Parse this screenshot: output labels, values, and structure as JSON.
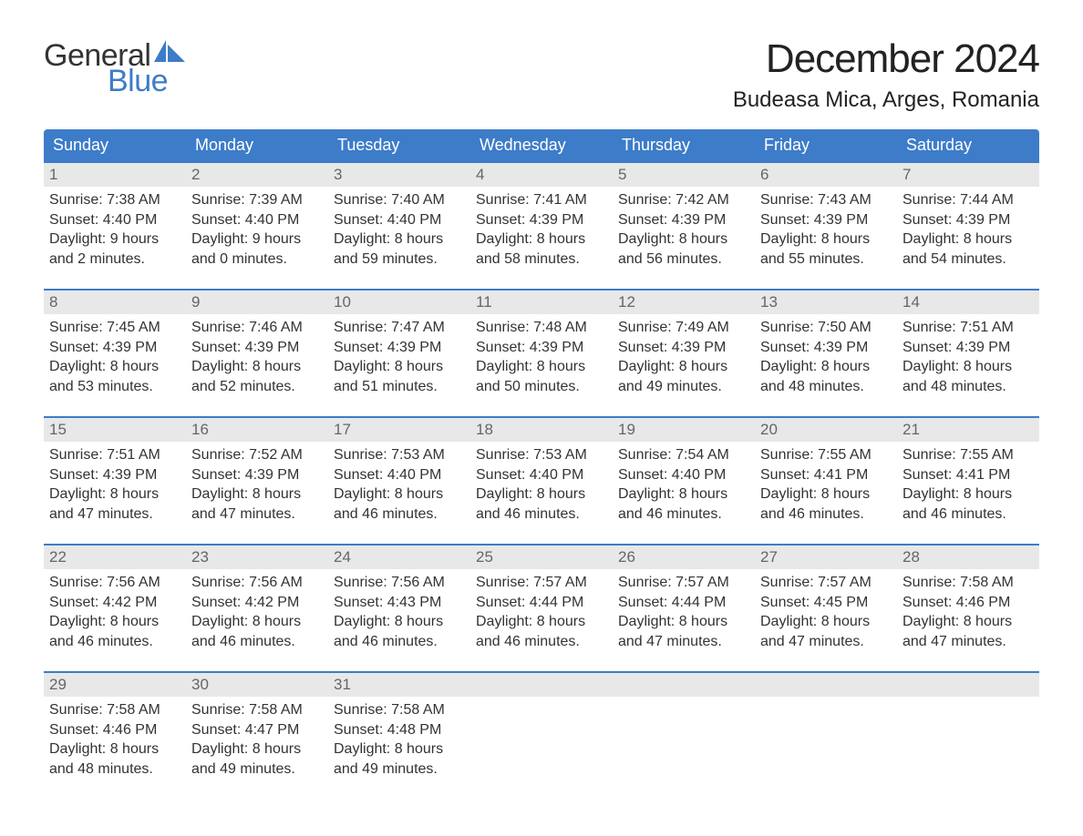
{
  "brand": {
    "word1": "General",
    "word2": "Blue",
    "accent_color": "#3d7cc9",
    "text_color": "#333333"
  },
  "title": "December 2024",
  "location": "Budeasa Mica, Arges, Romania",
  "colors": {
    "header_bg": "#3d7cc9",
    "header_text": "#ffffff",
    "daynum_bg": "#e8e8e8",
    "daynum_border": "#3d7cc9",
    "page_bg": "#ffffff",
    "body_text": "#333333"
  },
  "weekdays": [
    "Sunday",
    "Monday",
    "Tuesday",
    "Wednesday",
    "Thursday",
    "Friday",
    "Saturday"
  ],
  "labels": {
    "sunrise": "Sunrise:",
    "sunset": "Sunset:",
    "daylight": "Daylight:"
  },
  "weeks": [
    [
      {
        "day": 1,
        "sunrise": "7:38 AM",
        "sunset": "4:40 PM",
        "daylight": "9 hours and 2 minutes."
      },
      {
        "day": 2,
        "sunrise": "7:39 AM",
        "sunset": "4:40 PM",
        "daylight": "9 hours and 0 minutes."
      },
      {
        "day": 3,
        "sunrise": "7:40 AM",
        "sunset": "4:40 PM",
        "daylight": "8 hours and 59 minutes."
      },
      {
        "day": 4,
        "sunrise": "7:41 AM",
        "sunset": "4:39 PM",
        "daylight": "8 hours and 58 minutes."
      },
      {
        "day": 5,
        "sunrise": "7:42 AM",
        "sunset": "4:39 PM",
        "daylight": "8 hours and 56 minutes."
      },
      {
        "day": 6,
        "sunrise": "7:43 AM",
        "sunset": "4:39 PM",
        "daylight": "8 hours and 55 minutes."
      },
      {
        "day": 7,
        "sunrise": "7:44 AM",
        "sunset": "4:39 PM",
        "daylight": "8 hours and 54 minutes."
      }
    ],
    [
      {
        "day": 8,
        "sunrise": "7:45 AM",
        "sunset": "4:39 PM",
        "daylight": "8 hours and 53 minutes."
      },
      {
        "day": 9,
        "sunrise": "7:46 AM",
        "sunset": "4:39 PM",
        "daylight": "8 hours and 52 minutes."
      },
      {
        "day": 10,
        "sunrise": "7:47 AM",
        "sunset": "4:39 PM",
        "daylight": "8 hours and 51 minutes."
      },
      {
        "day": 11,
        "sunrise": "7:48 AM",
        "sunset": "4:39 PM",
        "daylight": "8 hours and 50 minutes."
      },
      {
        "day": 12,
        "sunrise": "7:49 AM",
        "sunset": "4:39 PM",
        "daylight": "8 hours and 49 minutes."
      },
      {
        "day": 13,
        "sunrise": "7:50 AM",
        "sunset": "4:39 PM",
        "daylight": "8 hours and 48 minutes."
      },
      {
        "day": 14,
        "sunrise": "7:51 AM",
        "sunset": "4:39 PM",
        "daylight": "8 hours and 48 minutes."
      }
    ],
    [
      {
        "day": 15,
        "sunrise": "7:51 AM",
        "sunset": "4:39 PM",
        "daylight": "8 hours and 47 minutes."
      },
      {
        "day": 16,
        "sunrise": "7:52 AM",
        "sunset": "4:39 PM",
        "daylight": "8 hours and 47 minutes."
      },
      {
        "day": 17,
        "sunrise": "7:53 AM",
        "sunset": "4:40 PM",
        "daylight": "8 hours and 46 minutes."
      },
      {
        "day": 18,
        "sunrise": "7:53 AM",
        "sunset": "4:40 PM",
        "daylight": "8 hours and 46 minutes."
      },
      {
        "day": 19,
        "sunrise": "7:54 AM",
        "sunset": "4:40 PM",
        "daylight": "8 hours and 46 minutes."
      },
      {
        "day": 20,
        "sunrise": "7:55 AM",
        "sunset": "4:41 PM",
        "daylight": "8 hours and 46 minutes."
      },
      {
        "day": 21,
        "sunrise": "7:55 AM",
        "sunset": "4:41 PM",
        "daylight": "8 hours and 46 minutes."
      }
    ],
    [
      {
        "day": 22,
        "sunrise": "7:56 AM",
        "sunset": "4:42 PM",
        "daylight": "8 hours and 46 minutes."
      },
      {
        "day": 23,
        "sunrise": "7:56 AM",
        "sunset": "4:42 PM",
        "daylight": "8 hours and 46 minutes."
      },
      {
        "day": 24,
        "sunrise": "7:56 AM",
        "sunset": "4:43 PM",
        "daylight": "8 hours and 46 minutes."
      },
      {
        "day": 25,
        "sunrise": "7:57 AM",
        "sunset": "4:44 PM",
        "daylight": "8 hours and 46 minutes."
      },
      {
        "day": 26,
        "sunrise": "7:57 AM",
        "sunset": "4:44 PM",
        "daylight": "8 hours and 47 minutes."
      },
      {
        "day": 27,
        "sunrise": "7:57 AM",
        "sunset": "4:45 PM",
        "daylight": "8 hours and 47 minutes."
      },
      {
        "day": 28,
        "sunrise": "7:58 AM",
        "sunset": "4:46 PM",
        "daylight": "8 hours and 47 minutes."
      }
    ],
    [
      {
        "day": 29,
        "sunrise": "7:58 AM",
        "sunset": "4:46 PM",
        "daylight": "8 hours and 48 minutes."
      },
      {
        "day": 30,
        "sunrise": "7:58 AM",
        "sunset": "4:47 PM",
        "daylight": "8 hours and 49 minutes."
      },
      {
        "day": 31,
        "sunrise": "7:58 AM",
        "sunset": "4:48 PM",
        "daylight": "8 hours and 49 minutes."
      },
      null,
      null,
      null,
      null
    ]
  ]
}
